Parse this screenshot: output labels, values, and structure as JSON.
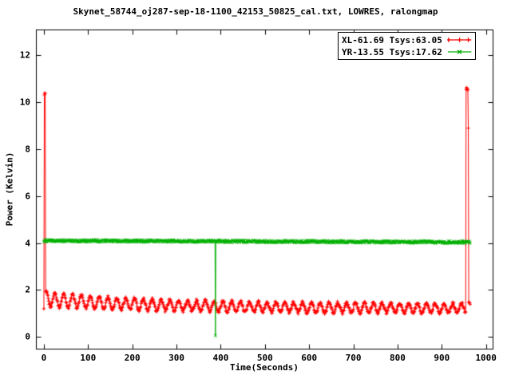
{
  "title": "Skynet_58744_oj287-sep-18-1100_42153_50825_cal.txt, LOWRES, ralongmap",
  "legend": {
    "position": "top-right",
    "entries": [
      {
        "label": "XL-61.69 Tsys:63.05",
        "color": "#ff0000",
        "marker": "plus"
      },
      {
        "label": "YR-13.55 Tsys:17.62",
        "color": "#00b000",
        "marker": "cross"
      }
    ]
  },
  "chart_data": {
    "type": "line",
    "title": "Skynet_58744_oj287-sep-18-1100_42153_50825_cal.txt, LOWRES, ralongmap",
    "xlabel": "Time(Seconds)",
    "ylabel": "Power (Kelvin)",
    "xlim": [
      -18,
      1015
    ],
    "ylim": [
      -0.5,
      13.1
    ],
    "x_ticks": [
      0,
      100,
      200,
      300,
      400,
      500,
      600,
      700,
      800,
      900,
      1000
    ],
    "y_ticks": [
      0,
      2,
      4,
      6,
      8,
      10,
      12
    ],
    "grid": false,
    "legend_position": "top-right",
    "series": [
      {
        "name": "XL-61.69 Tsys:63.05",
        "color": "#ff0000",
        "marker": "plus",
        "style": "linespoints",
        "x_range": [
          0,
          964
        ],
        "sample_step": 1,
        "start_point": {
          "x": 0,
          "y": 1.2
        },
        "cal_spikes": [
          {
            "x_from": 1,
            "x_to": 3,
            "base": 10.3,
            "jitter": 0.12
          },
          {
            "x_from": 955,
            "x_to": 959,
            "base": 10.5,
            "jitter": 0.15
          }
        ],
        "fall_sample": {
          "x": 960,
          "y": 8.9
        },
        "tail": {
          "x_from": 961,
          "x_to": 964,
          "y": 1.45,
          "jitter": 0.12
        },
        "baseline": {
          "mean_base": 1.22,
          "mean_extra": 0.4,
          "decay_x": 250,
          "amp_base": 0.2,
          "amp_extra": 0.1,
          "osc_period": 20,
          "noise": 0.14
        }
      },
      {
        "name": "YR-13.55 Tsys:17.62",
        "color": "#00b000",
        "marker": "cross",
        "style": "linespoints",
        "x_range": [
          0,
          964
        ],
        "sample_step": 1,
        "baseline": {
          "mean_start": 4.1,
          "mean_end": 4.04,
          "noise": 0.1
        },
        "dropouts": [
          {
            "x": 388,
            "y": 0.05
          }
        ]
      }
    ]
  }
}
